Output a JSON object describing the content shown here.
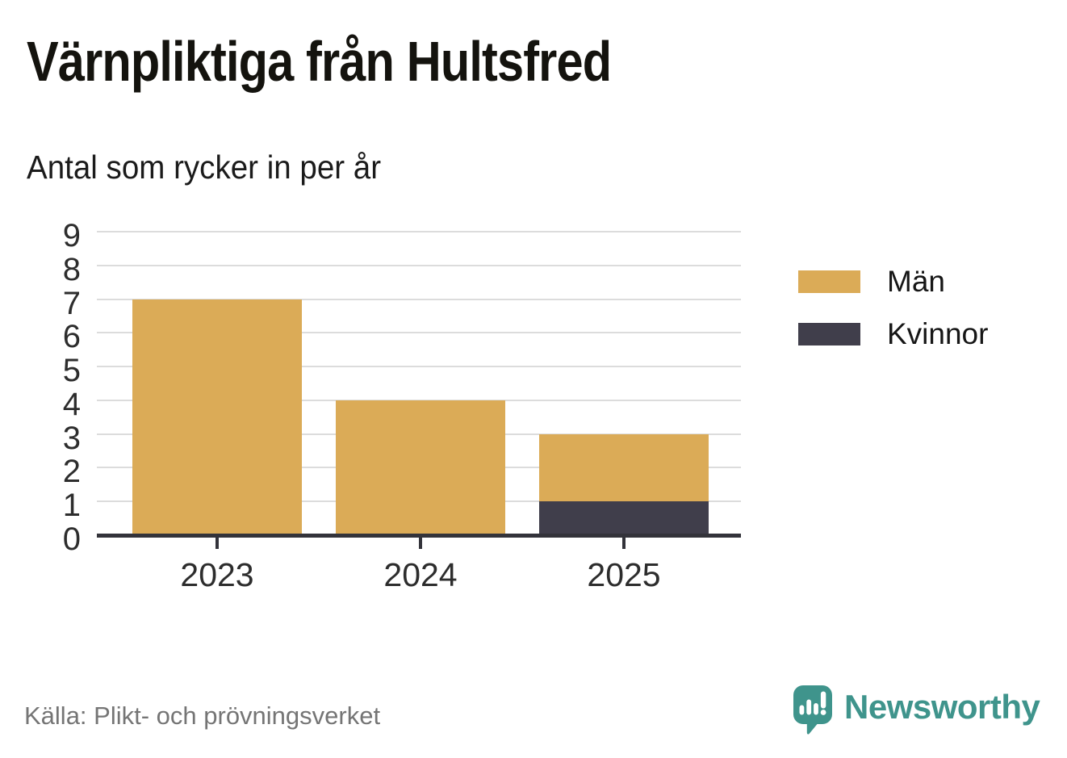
{
  "title": "Värnpliktiga från Hultsfred",
  "subtitle": "Antal som rycker in per år",
  "source": "Källa: Plikt- och prövningsverket",
  "branding": {
    "name": "Newsworthy",
    "color": "#3f948c",
    "icon": "bar-chart-speech-bubble-icon"
  },
  "colors": {
    "men": "#dbab57",
    "women": "#403e4b",
    "axis": "#33333a",
    "grid": "#dcdcdc",
    "text": "#161616",
    "muted": "#757575"
  },
  "legend": [
    {
      "label": "Män",
      "color": "#dbab57"
    },
    {
      "label": "Kvinnor",
      "color": "#403e4b"
    }
  ],
  "chart_data": {
    "type": "bar",
    "stacked": true,
    "title": "Värnpliktiga från Hultsfred",
    "subtitle": "Antal som rycker in per år",
    "categories": [
      "2023",
      "2024",
      "2025"
    ],
    "series": [
      {
        "name": "Män",
        "color": "#dbab57",
        "values": [
          7,
          4,
          2
        ]
      },
      {
        "name": "Kvinnor",
        "color": "#403e4b",
        "values": [
          0,
          0,
          1
        ]
      }
    ],
    "totals": [
      7,
      4,
      3
    ],
    "xlabel": "",
    "ylabel": "",
    "ylim": [
      0,
      9
    ],
    "yticks": [
      0,
      1,
      2,
      3,
      4,
      5,
      6,
      7,
      8,
      9
    ],
    "grid": true,
    "legend_position": "right",
    "stack_order_bottom_to_top": [
      "Kvinnor",
      "Män"
    ]
  }
}
